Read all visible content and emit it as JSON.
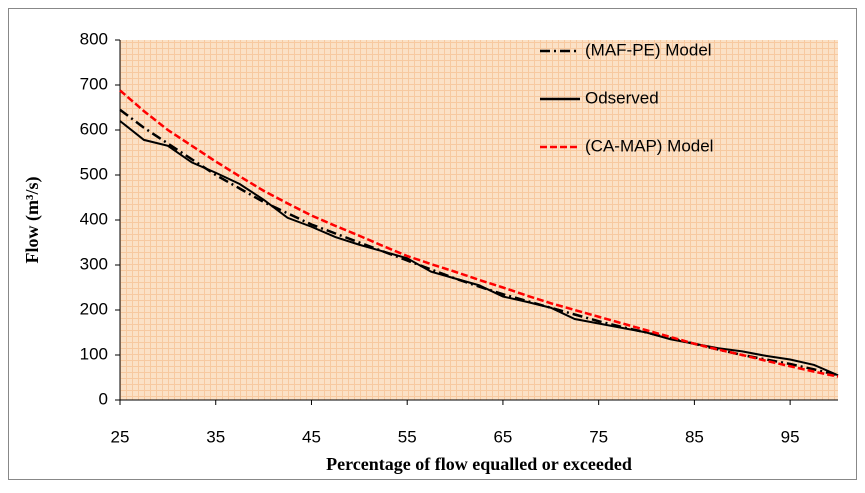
{
  "chart_data": {
    "type": "line",
    "x_label": "Percentage of  flow equalled or exceeded",
    "y_label": "Flow (m³/s)",
    "x": [
      25,
      27.5,
      30,
      32.5,
      35,
      37.5,
      40,
      42.5,
      45,
      47.5,
      50,
      52.5,
      55,
      57.5,
      60,
      62.5,
      65,
      67.5,
      70,
      72.5,
      75,
      77.5,
      80,
      82.5,
      85,
      87.5,
      90,
      92.5,
      95,
      97.5,
      100
    ],
    "series": [
      {
        "name": "(MAF-PE) Model",
        "color": "#000000",
        "line_style": "dashdot",
        "values": [
          645,
          605,
          570,
          535,
          500,
          470,
          440,
          415,
          390,
          370,
          350,
          330,
          310,
          290,
          270,
          252,
          235,
          220,
          205,
          190,
          175,
          162,
          150,
          137,
          125,
          112,
          100,
          90,
          80,
          68,
          55
        ]
      },
      {
        "name": "Odserved",
        "color": "#000000",
        "line_style": "solid",
        "values": [
          620,
          578,
          565,
          528,
          505,
          480,
          445,
          405,
          385,
          362,
          345,
          330,
          315,
          285,
          270,
          255,
          230,
          218,
          205,
          180,
          170,
          160,
          150,
          135,
          125,
          115,
          108,
          98,
          90,
          78,
          55
        ]
      },
      {
        "name": "(CA-MAP) Model",
        "color": "#ff0000",
        "line_style": "dashed",
        "values": [
          688,
          642,
          600,
          565,
          530,
          497,
          465,
          437,
          410,
          387,
          365,
          342,
          320,
          302,
          285,
          267,
          250,
          232,
          215,
          200,
          185,
          170,
          155,
          140,
          125,
          112,
          100,
          87,
          75,
          63,
          52
        ]
      }
    ],
    "xlim": [
      25,
      100
    ],
    "xticks": [
      25,
      35,
      45,
      55,
      65,
      75,
      85,
      95
    ],
    "ylim": [
      0,
      800
    ],
    "yticks": [
      0,
      100,
      200,
      300,
      400,
      500,
      600,
      700,
      800
    ],
    "legend": "top-right"
  }
}
